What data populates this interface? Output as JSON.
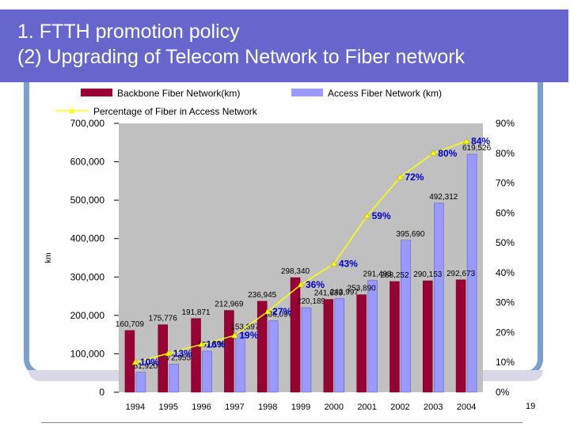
{
  "header": {
    "line1": "1. FTTH promotion policy",
    "line2": "(2) Upgrading of Telecom Network to Fiber network"
  },
  "page_number": "19",
  "colors": {
    "title_bg": "#6666cc",
    "frame": "#7b9fcf",
    "plot_bg": "#c0c0c0",
    "backbone": "#990033",
    "access": "#9999ff",
    "line": "#ffff00",
    "pct_label": "#0000cc"
  },
  "chart_data": {
    "type": "bar",
    "categories": [
      "1994",
      "1995",
      "1996",
      "1997",
      "1998",
      "1999",
      "2000",
      "2001",
      "2002",
      "2003",
      "2004"
    ],
    "series": [
      {
        "name": "Backbone Fiber Network(km)",
        "kind": "bar",
        "values": [
          160709,
          175776,
          191871,
          212969,
          236945,
          298340,
          241639,
          253890,
          288252,
          290153,
          292673
        ],
        "labels": [
          "160,709",
          "175,776",
          "191,871",
          "212,969",
          "236,945",
          "298,340",
          "241,639",
          "253,890",
          "288,252",
          "290,153",
          "292,673"
        ]
      },
      {
        "name": "Access Fiber Network (km)",
        "kind": "bar",
        "values": [
          51920,
          72955,
          107139,
          153897,
          186097,
          220189,
          243997,
          291493,
          395690,
          492312,
          619526
        ],
        "labels": [
          "51,920",
          "72,955",
          "107,139",
          "153,897",
          "186,097",
          "220,189",
          "243,997",
          "291,493",
          "395,690",
          "492,312",
          "619,526"
        ]
      },
      {
        "name": "Percentage of Fiber in Access Network",
        "kind": "line",
        "axis": "right",
        "values": [
          10,
          13,
          16,
          19,
          27,
          36,
          43,
          59,
          72,
          80,
          84
        ],
        "labels": [
          "10%",
          "13%",
          "16%",
          "19%",
          "27%",
          "36%",
          "43%",
          "59%",
          "72%",
          "80%",
          "84%"
        ]
      }
    ],
    "ylabel": "km",
    "ylim": [
      0,
      700000
    ],
    "yticks": [
      "0",
      "100,000",
      "200,000",
      "300,000",
      "400,000",
      "500,000",
      "600,000",
      "700,000"
    ],
    "y2lim": [
      0,
      90
    ],
    "y2ticks": [
      "0%",
      "10%",
      "20%",
      "30%",
      "40%",
      "50%",
      "60%",
      "70%",
      "80%",
      "90%"
    ],
    "legend": "top"
  }
}
